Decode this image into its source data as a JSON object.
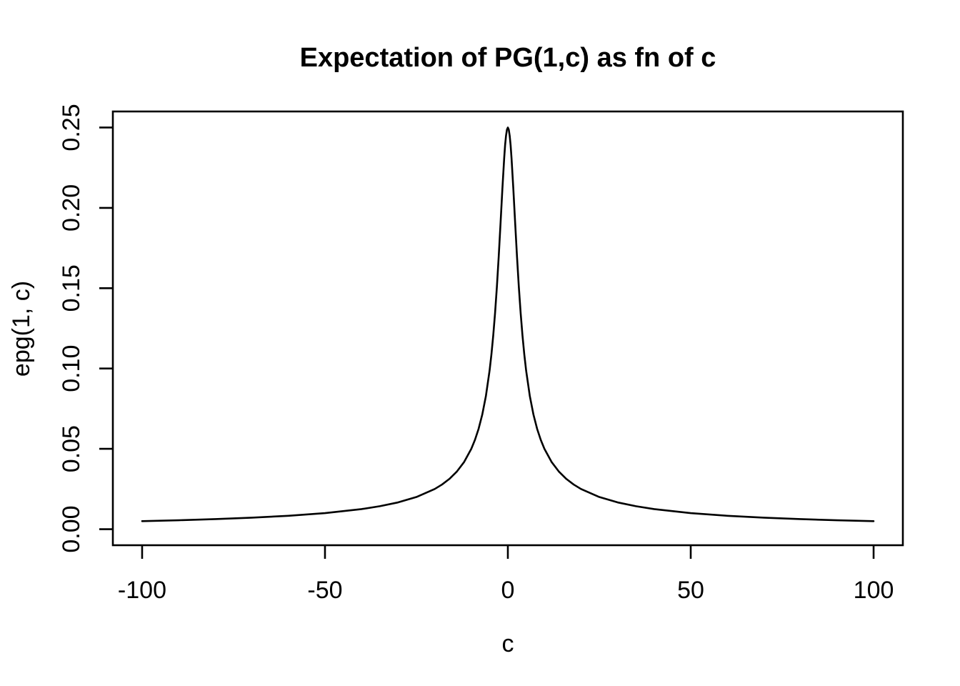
{
  "chart_data": {
    "type": "line",
    "title": "Expectation of PG(1,c) as fn of c",
    "xlabel": "c",
    "ylabel": "epg(1, c)",
    "xlim": [
      -100,
      100
    ],
    "ylim": [
      0,
      0.25
    ],
    "x_ticks": [
      -100,
      -50,
      0,
      50,
      100
    ],
    "x_tick_labels": [
      "-100",
      "-50",
      "0",
      "50",
      "100"
    ],
    "y_ticks": [
      0,
      0.05,
      0.1,
      0.15,
      0.2,
      0.25
    ],
    "y_tick_labels": [
      "0.00",
      "0.05",
      "0.10",
      "0.15",
      "0.20",
      "0.25"
    ],
    "grid": false,
    "legend": null,
    "line_color": "#000000",
    "axis_color": "#000000",
    "background_color": "#ffffff",
    "x": [
      -100,
      -90,
      -80,
      -70,
      -60,
      -50,
      -40,
      -35,
      -30,
      -25,
      -20,
      -18,
      -16,
      -14,
      -12,
      -10,
      -9,
      -8,
      -7,
      -6,
      -5,
      -4.5,
      -4,
      -3.5,
      -3,
      -2.5,
      -2,
      -1.5,
      -1,
      -0.75,
      -0.5,
      -0.25,
      0,
      0.25,
      0.5,
      0.75,
      1,
      1.5,
      2,
      2.5,
      3,
      3.5,
      4,
      4.5,
      5,
      6,
      7,
      8,
      9,
      10,
      12,
      14,
      16,
      18,
      20,
      25,
      30,
      35,
      40,
      50,
      60,
      70,
      80,
      90,
      100
    ],
    "y": [
      0.005,
      0.005556,
      0.00625,
      0.007143,
      0.008333,
      0.01,
      0.0125,
      0.014286,
      0.016667,
      0.02,
      0.025,
      0.027778,
      0.03125,
      0.035714,
      0.041667,
      0.049995,
      0.055542,
      0.062458,
      0.071298,
      0.082921,
      0.098661,
      0.10867,
      0.120503,
      0.134482,
      0.150858,
      0.169657,
      0.190399,
      0.211716,
      0.231059,
      0.239153,
      0.244919,
      0.248706,
      0.25,
      0.248706,
      0.244919,
      0.239153,
      0.231059,
      0.211716,
      0.190399,
      0.169657,
      0.150858,
      0.134482,
      0.120503,
      0.10867,
      0.098661,
      0.082921,
      0.071298,
      0.062458,
      0.055542,
      0.049995,
      0.041667,
      0.035714,
      0.03125,
      0.027778,
      0.025,
      0.02,
      0.016667,
      0.014286,
      0.0125,
      0.01,
      0.008333,
      0.007143,
      0.00625,
      0.005556,
      0.005
    ]
  }
}
